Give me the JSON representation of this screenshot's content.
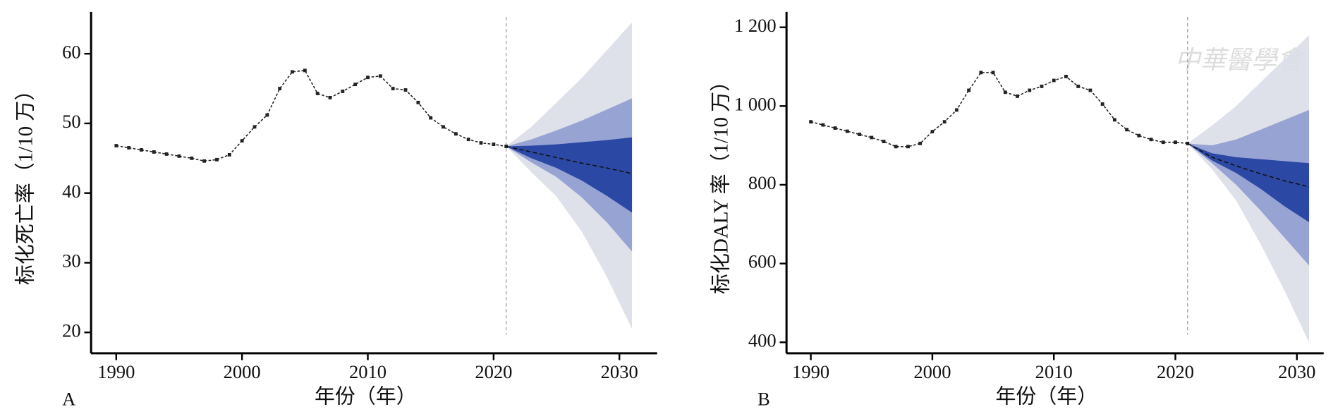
{
  "chart_data": [
    {
      "type": "line",
      "panel_label": "A",
      "xlabel": "年份（年）",
      "ylabel": "标化死亡率（1/10 万）",
      "xlim": [
        1988,
        2033
      ],
      "xticks": [
        1990,
        2000,
        2010,
        2020,
        2030
      ],
      "ylim": [
        17,
        66
      ],
      "yticks": [
        20,
        30,
        40,
        50,
        60
      ],
      "series": [
        {
          "color": "#222222",
          "x": [
            1990,
            1991,
            1992,
            1993,
            1994,
            1995,
            1996,
            1997,
            1998,
            1999,
            2000,
            2001,
            2002,
            2003,
            2004,
            2005,
            2006,
            2007,
            2008,
            2009,
            2010,
            2011,
            2012,
            2013,
            2014,
            2015,
            2016,
            2017,
            2018,
            2019,
            2020,
            2021
          ],
          "values": [
            46.8,
            46.5,
            46.2,
            45.9,
            45.6,
            45.3,
            45.0,
            44.6,
            44.8,
            45.5,
            47.5,
            49.5,
            51.2,
            55.0,
            57.4,
            57.6,
            54.3,
            53.7,
            54.6,
            55.6,
            56.6,
            56.8,
            55.0,
            54.8,
            53.0,
            50.8,
            49.5,
            48.5,
            47.7,
            47.2,
            47.0,
            46.7
          ]
        },
        {
          "color": "#111111",
          "x": [
            2021,
            2023,
            2025,
            2027,
            2029,
            2031
          ],
          "values": [
            46.7,
            45.9,
            45.1,
            44.3,
            43.6,
            42.8
          ]
        }
      ],
      "bands": {
        "x": [
          2021,
          2023,
          2025,
          2027,
          2029,
          2031
        ],
        "levels": [
          {
            "color": "#dcdee8",
            "upper": [
              46.7,
              49.5,
              53.0,
              56.5,
              60.5,
              64.5
            ],
            "lower": [
              46.7,
              43.0,
              39.5,
              34.5,
              28.0,
              20.5
            ]
          },
          {
            "color": "#8f9cd0",
            "upper": [
              46.7,
              47.7,
              49.0,
              50.4,
              52.0,
              53.6
            ],
            "lower": [
              46.7,
              44.4,
              42.3,
              39.4,
              35.8,
              31.6
            ]
          },
          {
            "color": "#1f3e9e",
            "upper": [
              46.7,
              46.8,
              47.0,
              47.3,
              47.6,
              48.0
            ],
            "lower": [
              46.7,
              45.0,
              43.6,
              41.8,
              39.6,
              37.2
            ]
          }
        ]
      }
    },
    {
      "type": "line",
      "panel_label": "B",
      "xlabel": "年份（年）",
      "ylabel": "标化DALY 率（1/10 万）",
      "watermark": "中華醫學會",
      "xlim": [
        1988,
        2032.2
      ],
      "xticks": [
        1990,
        2000,
        2010,
        2020,
        2030
      ],
      "ylim": [
        372,
        1239
      ],
      "yticks": [
        400,
        600,
        800,
        {
          "value": 1000,
          "label": "1 000"
        },
        {
          "value": 1200,
          "label": "1 200"
        }
      ],
      "series": [
        {
          "color": "#222222",
          "x": [
            1990,
            1991,
            1992,
            1993,
            1994,
            1995,
            1996,
            1997,
            1998,
            1999,
            2000,
            2001,
            2002,
            2003,
            2004,
            2005,
            2006,
            2007,
            2008,
            2009,
            2010,
            2011,
            2012,
            2013,
            2014,
            2015,
            2016,
            2017,
            2018,
            2019,
            2020,
            2021
          ],
          "values": [
            960,
            952,
            944,
            936,
            928,
            920,
            910,
            897,
            897,
            905,
            935,
            960,
            990,
            1040,
            1085,
            1085,
            1035,
            1025,
            1040,
            1050,
            1065,
            1075,
            1050,
            1040,
            1005,
            965,
            940,
            925,
            915,
            908,
            908,
            905
          ]
        },
        {
          "color": "#111111",
          "x": [
            2021,
            2023,
            2025,
            2027,
            2029,
            2031
          ],
          "values": [
            905,
            870,
            848,
            828,
            810,
            795
          ]
        }
      ],
      "bands": {
        "x": [
          2021,
          2023,
          2025,
          2027,
          2029,
          2031
        ],
        "levels": [
          {
            "color": "#dcdee8",
            "upper": [
              905,
              950,
              1000,
              1060,
              1120,
              1180
            ],
            "lower": [
              905,
              840,
              760,
              650,
              530,
              400
            ]
          },
          {
            "color": "#8f9cd0",
            "upper": [
              905,
              900,
              915,
              940,
              965,
              990
            ],
            "lower": [
              905,
              855,
              800,
              735,
              665,
              595
            ]
          },
          {
            "color": "#1f3e9e",
            "upper": [
              905,
              880,
              870,
              865,
              860,
              855
            ],
            "lower": [
              905,
              862,
              830,
              790,
              745,
              705
            ]
          }
        ]
      }
    }
  ]
}
